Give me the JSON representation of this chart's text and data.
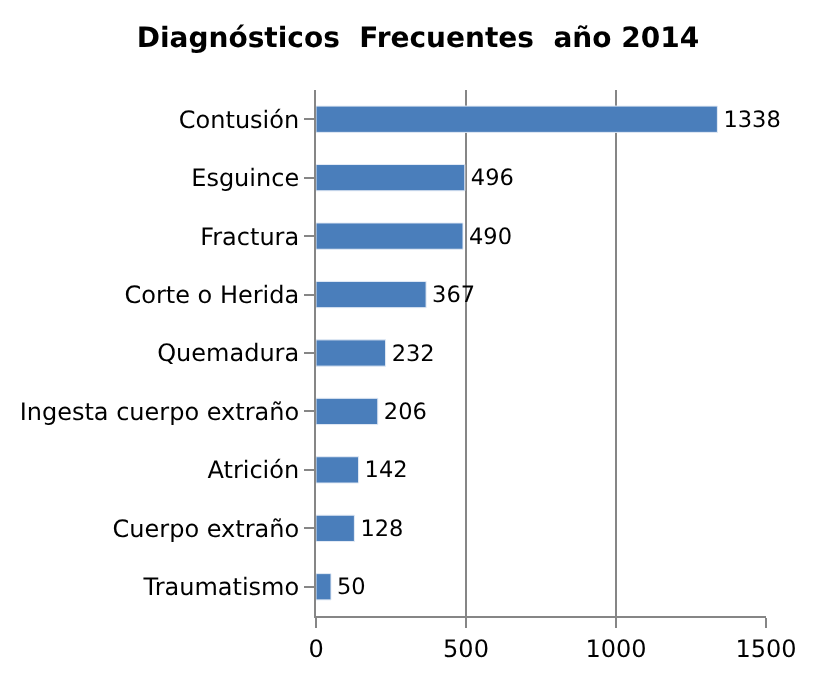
{
  "chart_data": {
    "type": "bar",
    "orientation": "horizontal",
    "title": "Diagnósticos  Frecuentes  año 2014",
    "categories": [
      "Contusión",
      "Esguince",
      "Fractura",
      "Corte o Herida",
      "Quemadura",
      "Ingesta cuerpo extraño",
      "Atrición",
      "Cuerpo extraño",
      "Traumatismo"
    ],
    "values": [
      1338,
      496,
      490,
      367,
      232,
      206,
      142,
      128,
      50
    ],
    "color": "#4a7ebb",
    "xlim": [
      0,
      1500
    ],
    "xticks": [
      0,
      500,
      1000,
      1500
    ],
    "grid": "x",
    "data_labels": true,
    "legend": false
  }
}
